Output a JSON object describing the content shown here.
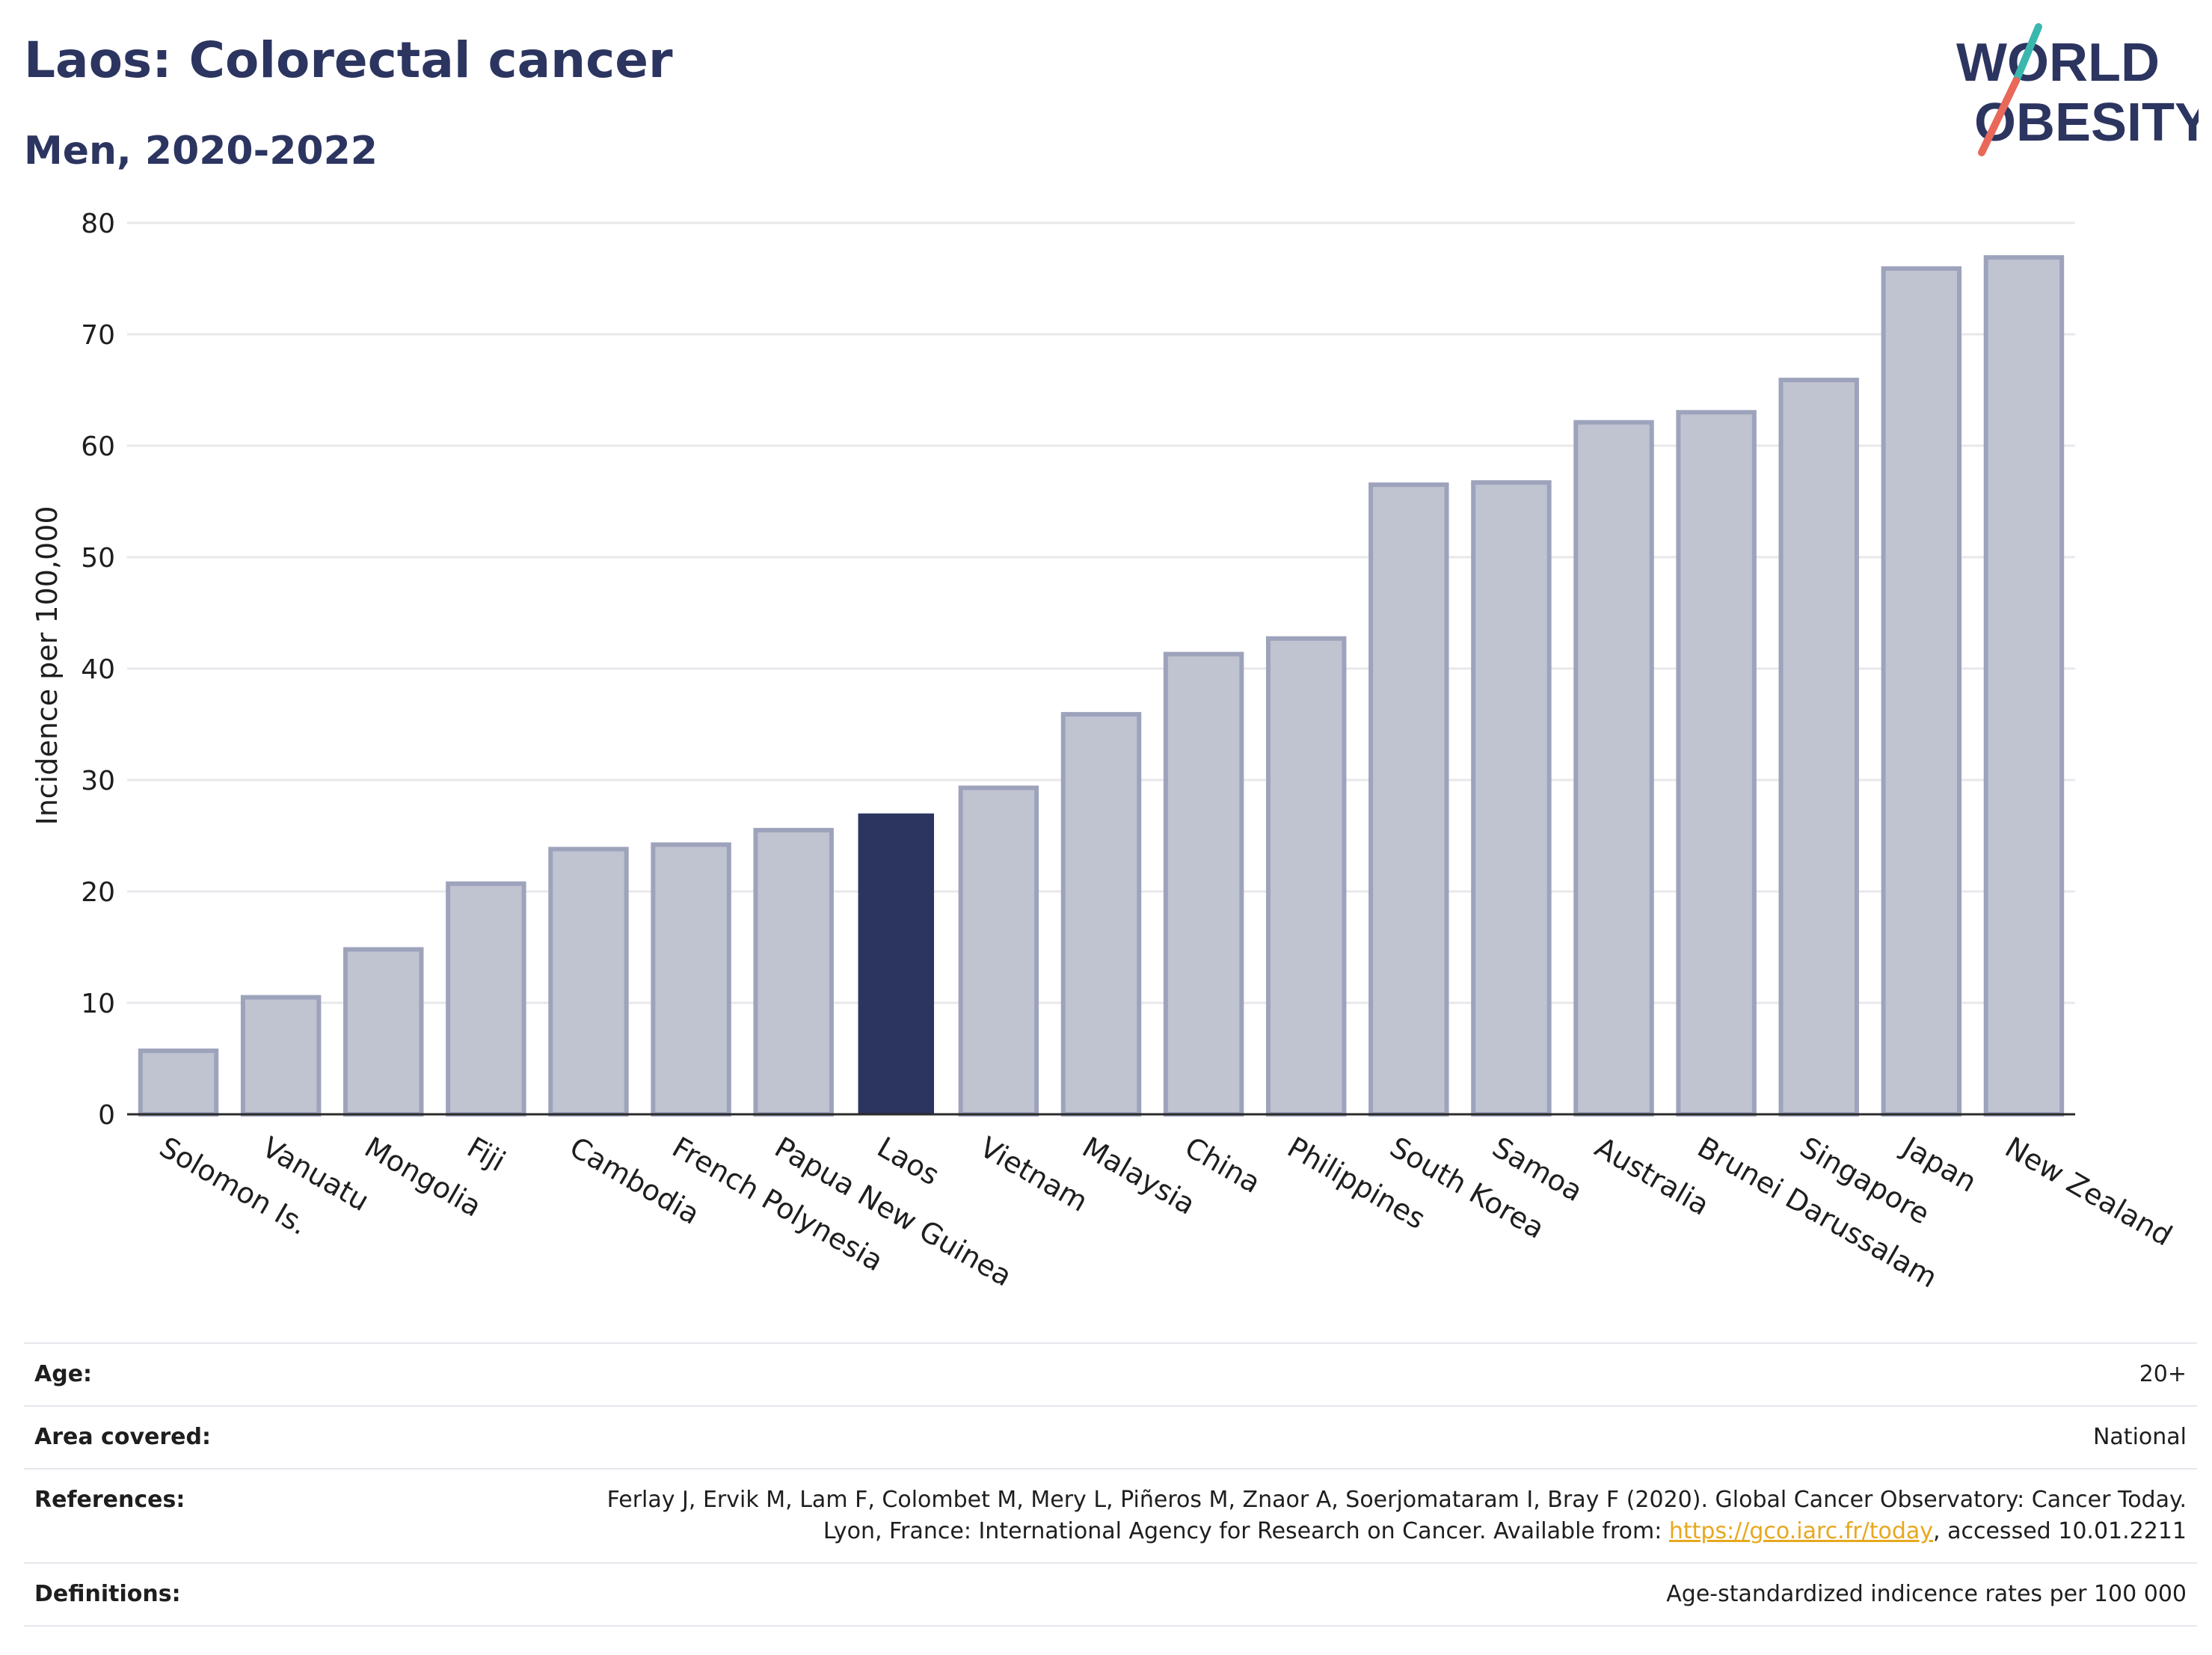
{
  "title": "Laos: Colorectal cancer",
  "subtitle": "Men, 2020-2022",
  "logo": {
    "line1": "WORLD",
    "line2": "OBESITY",
    "colors": {
      "text": "#2c3560",
      "slash_red": "#e8685a",
      "slash_teal": "#3bb7ae"
    }
  },
  "colors": {
    "bar": "#c0c3d0",
    "bar_stroke": "#9ea3bc",
    "highlight": "#2c3560",
    "grid": "#e8e8ec",
    "axis": "#2b2b2b",
    "text": "#1e1e1e",
    "title": "#2c3560",
    "link": "#e8a81e"
  },
  "chart_data": {
    "type": "bar",
    "title": "Laos: Colorectal cancer",
    "subtitle": "Men, 2020-2022",
    "xlabel": "",
    "ylabel": "Incidence per 100,000",
    "ylim": [
      0,
      80
    ],
    "yticks": [
      0,
      10,
      20,
      30,
      40,
      50,
      60,
      70,
      80
    ],
    "grid": true,
    "highlight": "Laos",
    "categories": [
      "Solomon Is.",
      "Vanuatu",
      "Mongolia",
      "Fiji",
      "Cambodia",
      "French Polynesia",
      "Papua New Guinea",
      "Laos",
      "Vietnam",
      "Malaysia",
      "China",
      "Philippines",
      "South Korea",
      "Samoa",
      "Australia",
      "Brunei Darussalam",
      "Singapore",
      "Japan",
      "New Zealand"
    ],
    "values": [
      5.7,
      10.5,
      14.8,
      20.7,
      23.8,
      24.2,
      25.5,
      27.0,
      29.3,
      35.9,
      41.3,
      42.7,
      56.5,
      56.7,
      62.1,
      63.0,
      65.9,
      75.9,
      76.9
    ]
  },
  "table": [
    {
      "label": "Age:",
      "value": "20+"
    },
    {
      "label": "Area covered:",
      "value": "National"
    },
    {
      "label": "References:",
      "value_before": "Ferlay J, Ervik M, Lam F, Colombet M, Mery L, Piñeros M, Znaor A, Soerjomataram I, Bray F (2020). Global Cancer Observatory: Cancer Today. Lyon, France: International Agency for Research on Cancer. Available from: ",
      "link": "https://gco.iarc.fr/today",
      "value_after": ", accessed 10.01.2211"
    },
    {
      "label": "Definitions:",
      "value": "Age-standardized indicence rates per 100 000"
    }
  ]
}
